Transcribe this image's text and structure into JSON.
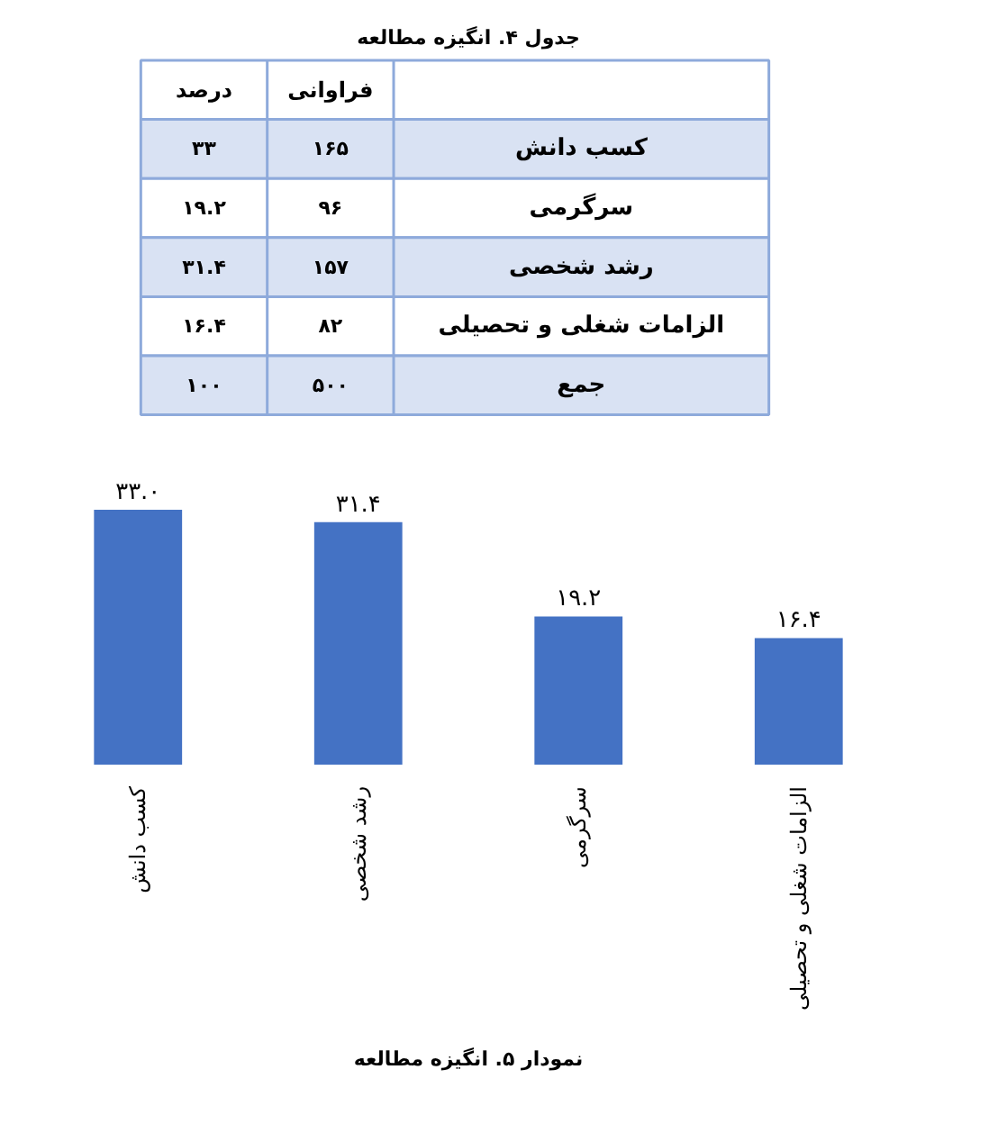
{
  "chart_data": [
    {
      "type": "other",
      "title": "جدول ۴. انگیزه مطالعه",
      "categories": [
        "درصد",
        "فراوانی"
      ],
      "y_categories": [
        "کسب دانش",
        "سرگرمی",
        "رشد شخصی",
        "الزامات شغلی و تحصیلی",
        "جمع"
      ],
      "colors": [
        "#ffffff",
        "#d9e2f3",
        "#ffffff",
        "#d9e2f3",
        "#ffffff",
        "#d9e2f3"
      ],
      "cell_labels": [
        [
          "۳۳",
          "۱۶۵"
        ],
        [
          "۱۹.۲",
          "۹۶"
        ],
        [
          "۳۱.۴",
          "۱۵۷"
        ],
        [
          "۱۶.۴",
          "۸۲"
        ],
        [
          "۱۰۰",
          "۵۰۰"
        ]
      ]
    },
    {
      "type": "bar",
      "title": "نمودار ۵. انگیزه مطالعه",
      "categories": [
        "کسب دانش",
        "رشد شخصی",
        "سرگرمی",
        "الزامات شغلی و تحصیلی"
      ],
      "values": [
        33.0,
        31.4,
        19.2,
        16.4
      ],
      "value_labels": [
        "۳۳.۰",
        "۳۱.۴",
        "۱۹.۲",
        "۱۶.۴"
      ],
      "color": "#4472c4",
      "tick_labels": "x"
    }
  ]
}
